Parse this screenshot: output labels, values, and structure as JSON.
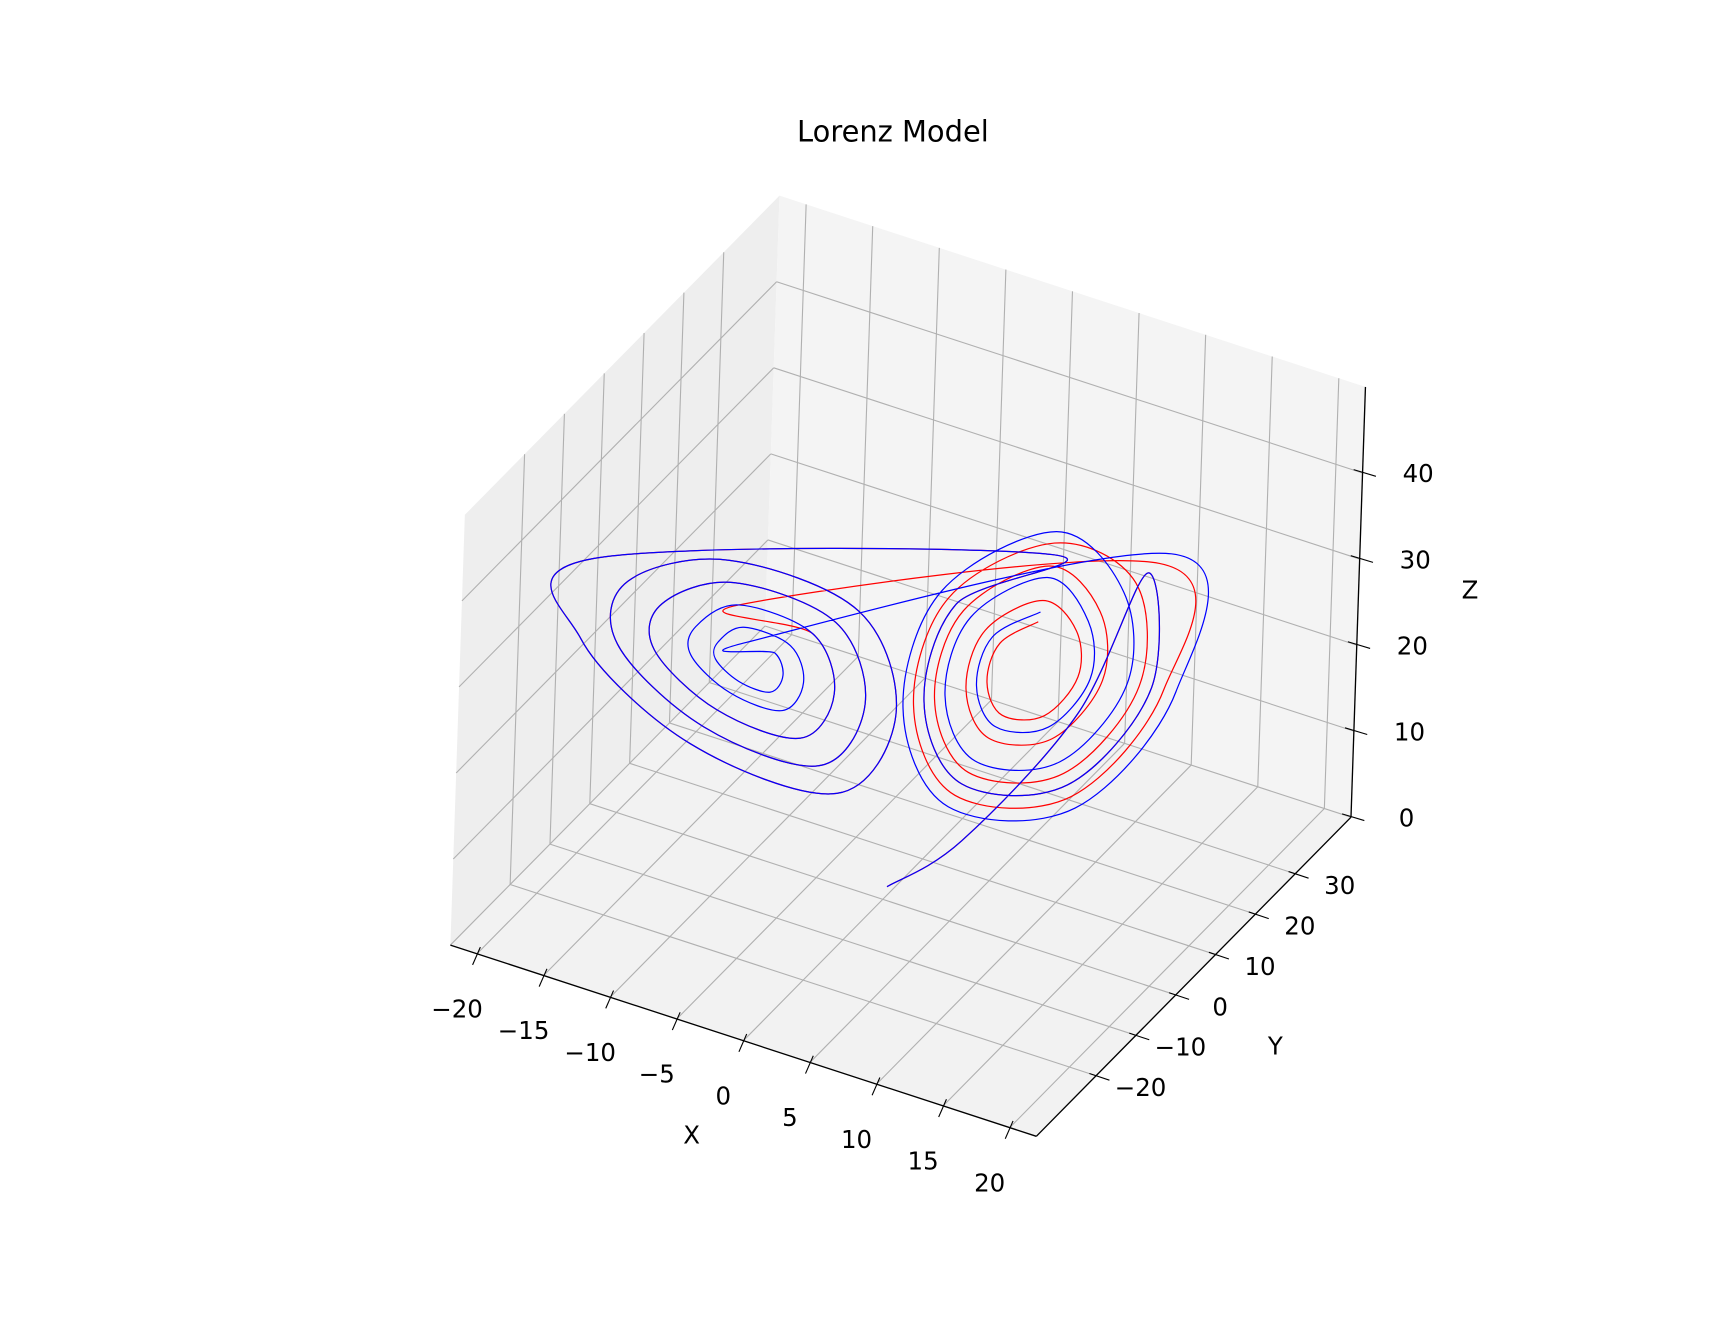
{
  "chart_data": {
    "type": "line3d",
    "title": "Lorenz Model",
    "xlabel": "X",
    "ylabel": "Y",
    "zlabel": "Z",
    "xlim": [
      -22,
      22
    ],
    "ylim": [
      -35,
      44
    ],
    "zlim": [
      0,
      50
    ],
    "grid": true,
    "xticks": [
      {
        "value": -20,
        "label": "−20"
      },
      {
        "value": -15,
        "label": "−15"
      },
      {
        "value": -10,
        "label": "−10"
      },
      {
        "value": -5,
        "label": "−5"
      },
      0,
      5,
      10,
      15,
      20
    ],
    "yticks": [
      {
        "value": -20,
        "label": "−20"
      },
      {
        "value": -10,
        "label": "−10"
      },
      0,
      10,
      20,
      30
    ],
    "zticks": [
      0,
      10,
      20,
      30,
      40
    ],
    "series": [
      {
        "color": "#ff0000",
        "x": [
          0,
          4,
          10,
          14,
          16,
          12,
          5,
          2,
          3,
          8,
          -16.4,
          -19.2,
          -13.6,
          -3.8,
          0.4,
          -1,
          -8,
          -14.6,
          -16.8,
          -12.4,
          -4.7,
          -1.4,
          -2.5,
          -8,
          -12.8,
          -14.4,
          -11.2,
          -5.6,
          -3.2,
          -4,
          -8,
          14.6,
          16.8,
          12.4,
          4.7,
          1.4,
          2.5,
          8,
          13.4,
          15.2,
          11.6,
          5.3,
          2.6,
          3.5,
          8,
          11.6,
          12.8,
          10.4,
          6.2,
          4.4,
          5,
          8,
          10.4,
          11.2,
          9.6,
          6.8,
          5.6,
          6,
          8
        ],
        "y": [
          1,
          6,
          14,
          17,
          12,
          5,
          2,
          2,
          6,
          13,
          -20.6,
          -13.6,
          -3.8,
          0.4,
          0.4,
          -5.2,
          -15,
          -17.9,
          -12.4,
          -4.7,
          -1.4,
          -1.4,
          -5.8,
          -13.5,
          -15.2,
          -11.2,
          -5.6,
          -3.2,
          -3.2,
          -6.4,
          -12,
          17.9,
          12.4,
          4.7,
          1.4,
          1.4,
          5.8,
          13.5,
          16.1,
          11.6,
          5.3,
          2.6,
          2.6,
          6.2,
          12.5,
          13.4,
          10.4,
          6.2,
          4.4,
          4.4,
          6.8,
          11,
          11.6,
          9.6,
          6.8,
          5.6,
          5.6,
          7.2,
          10
        ],
        "z": [
          1,
          6,
          20,
          37,
          27,
          17,
          15,
          23,
          33,
          38,
          41,
          27,
          13,
          10.2,
          21.4,
          35.4,
          42.4,
          38,
          27,
          16,
          13.8,
          22.6,
          33.6,
          39.1,
          35,
          27,
          19,
          17.4,
          23.8,
          31.8,
          35.8,
          38,
          27,
          16,
          13.8,
          22.6,
          33.6,
          39.1,
          36,
          27,
          18,
          16.2,
          23.4,
          32.4,
          36.9,
          33,
          27,
          21,
          19.8,
          24.6,
          30.6,
          33.6,
          31,
          27,
          23,
          22.2,
          25.4,
          29.4,
          31.6
        ]
      },
      {
        "color": "#0000ff",
        "x": [
          0,
          4,
          10,
          14,
          16,
          12,
          5,
          2,
          3,
          8,
          -16.4,
          -19.2,
          -13.6,
          -3.8,
          0.4,
          -1,
          -8,
          -14.6,
          -16.8,
          -12.4,
          -4.7,
          -1.4,
          -2.5,
          -8,
          -12.8,
          -14.4,
          -11.2,
          -5.6,
          -3.2,
          -4,
          -8,
          -11,
          -12,
          -10,
          -6.5,
          -5,
          -5.5,
          -8,
          -9.8,
          -10.4,
          -9.2,
          -7.1,
          -6.2,
          -6.5,
          -8,
          15.2,
          17.6,
          12.8,
          4.4,
          0.8,
          2,
          8,
          12.8,
          14.4,
          11.2,
          5.6,
          3.2,
          4,
          8,
          11,
          12,
          10,
          6.5,
          5,
          5.5,
          8
        ],
        "y": [
          1,
          6,
          14,
          17,
          12,
          5,
          2,
          2,
          6,
          13,
          -20.6,
          -13.6,
          -3.8,
          0.4,
          0.4,
          -5.2,
          -15,
          -17.9,
          -12.4,
          -4.7,
          -1.4,
          -1.4,
          -5.8,
          -13.5,
          -15.2,
          -11.2,
          -5.6,
          -3.2,
          -3.2,
          -6.4,
          -12,
          -12.5,
          -10,
          -6.5,
          -5,
          -5,
          -7,
          -10.5,
          -10.7,
          -9.2,
          -7.1,
          -6.2,
          -6.2,
          -7.4,
          -9.5,
          18.8,
          12.8,
          4.4,
          0.8,
          0.8,
          5.6,
          14,
          15.2,
          11.2,
          5.6,
          3.2,
          3.2,
          6.4,
          12,
          12.5,
          10,
          6.5,
          5,
          5,
          7,
          10.5
        ],
        "z": [
          1,
          6,
          20,
          37,
          27,
          17,
          15,
          23,
          33,
          38,
          41,
          27,
          13,
          10.2,
          21.4,
          35.4,
          42.4,
          38,
          27,
          16,
          13.8,
          22.6,
          33.6,
          39.1,
          35,
          27,
          19,
          17.4,
          23.8,
          31.8,
          35.8,
          32,
          27,
          22,
          21,
          25,
          30,
          32.5,
          30,
          27,
          24,
          23.4,
          25.8,
          28.8,
          30.3,
          39,
          27,
          15,
          12.6,
          22.2,
          34.2,
          40.2,
          35,
          27,
          19,
          17.4,
          23.8,
          31.8,
          35.8,
          32,
          27,
          22,
          21,
          25,
          30,
          32.5
        ]
      }
    ]
  }
}
